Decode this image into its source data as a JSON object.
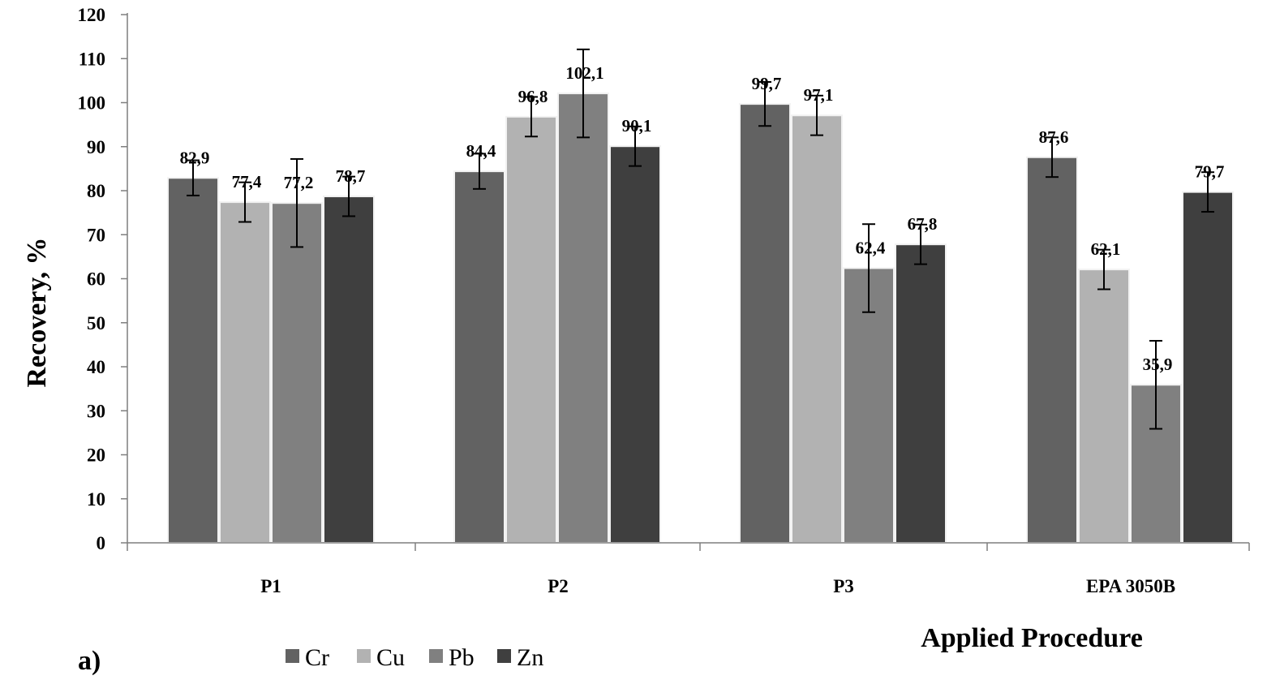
{
  "chart_data": {
    "type": "bar",
    "categories": [
      "P1",
      "P2",
      "P3",
      "EPA 3050B"
    ],
    "series": [
      {
        "name": "Cr",
        "color": "#626262",
        "values": [
          82.9,
          84.4,
          99.7,
          87.6
        ],
        "errors": [
          4,
          4,
          5,
          4.5
        ]
      },
      {
        "name": "Cu",
        "color": "#b2b2b2",
        "values": [
          77.4,
          96.8,
          97.1,
          62.1
        ],
        "errors": [
          4.5,
          4.5,
          4.5,
          4.5
        ]
      },
      {
        "name": "Pb",
        "color": "#808080",
        "values": [
          77.2,
          102.1,
          62.4,
          35.9
        ],
        "errors": [
          10,
          10,
          10,
          10
        ]
      },
      {
        "name": "Zn",
        "color": "#3f3f3f",
        "values": [
          78.7,
          90.1,
          67.8,
          79.7
        ],
        "errors": [
          4.5,
          4.5,
          4.5,
          4.5
        ]
      }
    ],
    "data_labels": [
      [
        "82,9",
        "84,4",
        "99,7",
        "87,6"
      ],
      [
        "77,4",
        "96,8",
        "97,1",
        "62,1"
      ],
      [
        "77,2",
        "102,1",
        "62,4",
        "35,9"
      ],
      [
        "78,7",
        "90,1",
        "67,8",
        "79,7"
      ]
    ],
    "y_ticks": [
      "0",
      "10",
      "20",
      "30",
      "40",
      "50",
      "60",
      "70",
      "80",
      "90",
      "100",
      "110",
      "120"
    ],
    "ylim": [
      0,
      120
    ],
    "ylabel": "Recovery, %",
    "xlabel": "Applied Procedure",
    "panel_label": "a)",
    "legend_position": "bottom-left",
    "grid": false
  }
}
